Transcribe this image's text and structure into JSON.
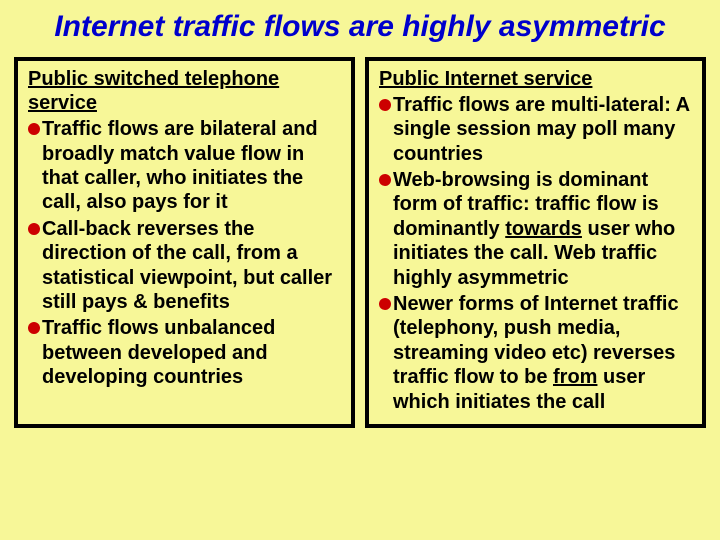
{
  "background_color": "#f7f798",
  "title_color": "#0000cc",
  "bullet_color": "#cc0000",
  "text_color": "#000000",
  "border_color": "#000000",
  "title_fontsize": 30,
  "body_fontsize": 20,
  "title": "Internet traffic flows are highly asymmetric",
  "left": {
    "heading": "Public switched telephone service",
    "items": [
      "Traffic flows are bilateral and broadly match value flow in that caller, who initiates the call, also pays for it",
      "Call-back reverses the direction of the call, from a statistical viewpoint, but caller still pays & benefits",
      "Traffic flows unbalanced between developed and developing countries"
    ]
  },
  "right": {
    "heading": "Public Internet service",
    "items": [
      {
        "pre": "Traffic flows are multi-lateral: A single session may poll many countries"
      },
      {
        "pre": "Web-browsing is dominant form of traffic: traffic flow is dominantly ",
        "u": "towards",
        "post": " user who initiates the call. Web traffic highly asymmetric"
      },
      {
        "pre": "Newer forms of Internet traffic (telephony, push media, streaming video etc) reverses traffic flow to be ",
        "u": "from",
        "post": " user which initiates the call"
      }
    ]
  }
}
